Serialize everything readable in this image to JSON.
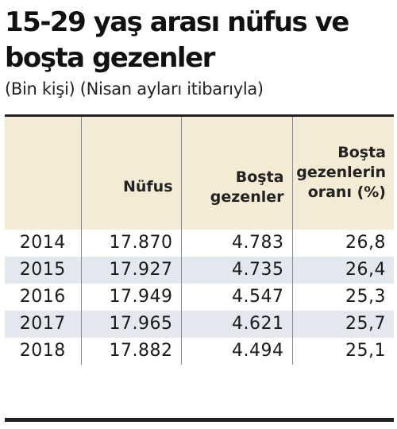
{
  "title": "15-29 yaş arası nüfus ve boşta gezenler",
  "subtitle": "(Bin kişi) (Nisan ayları itibarıyla)",
  "chart_data": {
    "type": "table",
    "columns": [
      "",
      "Nüfus",
      "Boşta gezenler",
      "Boşta gezenlerin oranı (%)"
    ],
    "rows": [
      [
        "2014",
        "17.870",
        "4.783",
        "26,8"
      ],
      [
        "2015",
        "17.927",
        "4.735",
        "26,4"
      ],
      [
        "2016",
        "17.949",
        "4.547",
        "25,3"
      ],
      [
        "2017",
        "17.965",
        "4.621",
        "25,7"
      ],
      [
        "2018",
        "17.882",
        "4.494",
        "25,1"
      ]
    ]
  }
}
